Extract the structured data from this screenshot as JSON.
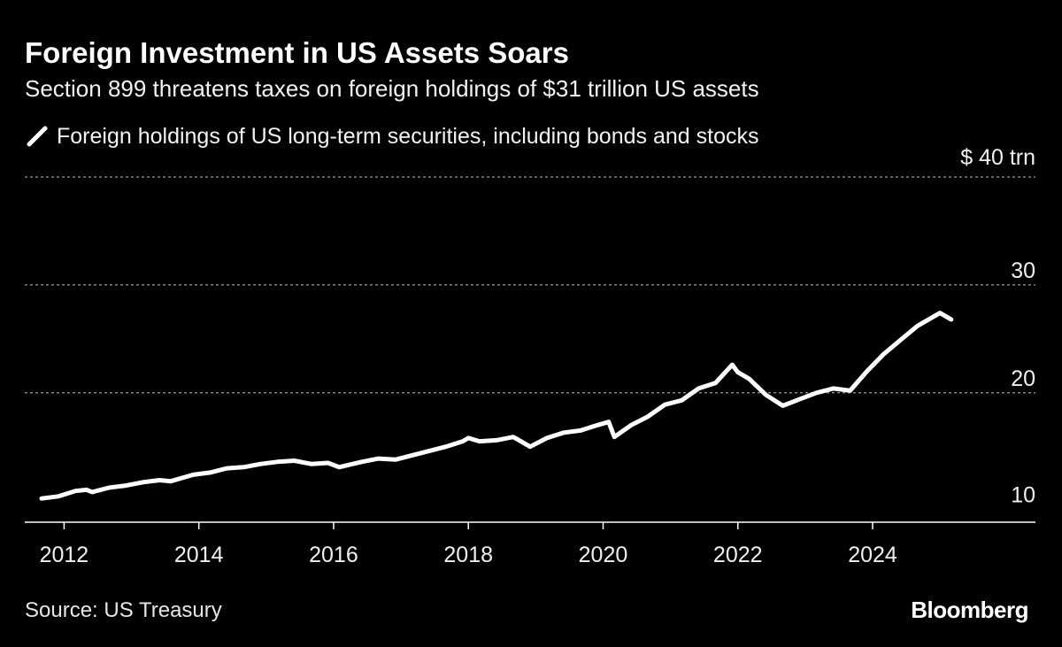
{
  "chart_data": {
    "type": "line",
    "title": "Foreign Investment in US Assets Soars",
    "subtitle": "Section 899 threatens taxes on foreign holdings of $31 trillion US assets",
    "y_unit_label": "$ 40 trn",
    "series": [
      {
        "name": "Foreign holdings of US long-term securities, including bonds and stocks",
        "color": "#ffffff",
        "points": [
          [
            "2011-09",
            10.2
          ],
          [
            "2011-12",
            10.4
          ],
          [
            "2012-03",
            10.9
          ],
          [
            "2012-05",
            11.0
          ],
          [
            "2012-06",
            10.8
          ],
          [
            "2012-09",
            11.2
          ],
          [
            "2012-12",
            11.4
          ],
          [
            "2013-03",
            11.7
          ],
          [
            "2013-06",
            11.9
          ],
          [
            "2013-08",
            11.8
          ],
          [
            "2013-12",
            12.4
          ],
          [
            "2014-03",
            12.6
          ],
          [
            "2014-06",
            13.0
          ],
          [
            "2014-09",
            13.1
          ],
          [
            "2014-12",
            13.4
          ],
          [
            "2015-03",
            13.6
          ],
          [
            "2015-06",
            13.7
          ],
          [
            "2015-09",
            13.4
          ],
          [
            "2015-12",
            13.5
          ],
          [
            "2016-02",
            13.1
          ],
          [
            "2016-06",
            13.6
          ],
          [
            "2016-09",
            13.9
          ],
          [
            "2016-12",
            13.8
          ],
          [
            "2017-03",
            14.2
          ],
          [
            "2017-06",
            14.6
          ],
          [
            "2017-09",
            15.0
          ],
          [
            "2017-12",
            15.5
          ],
          [
            "2018-01",
            15.8
          ],
          [
            "2018-03",
            15.5
          ],
          [
            "2018-06",
            15.6
          ],
          [
            "2018-09",
            15.9
          ],
          [
            "2018-12",
            15.0
          ],
          [
            "2019-03",
            15.8
          ],
          [
            "2019-06",
            16.3
          ],
          [
            "2019-09",
            16.5
          ],
          [
            "2019-12",
            17.0
          ],
          [
            "2020-02",
            17.3
          ],
          [
            "2020-03",
            15.9
          ],
          [
            "2020-06",
            17.0
          ],
          [
            "2020-09",
            17.8
          ],
          [
            "2020-12",
            18.9
          ],
          [
            "2021-03",
            19.3
          ],
          [
            "2021-06",
            20.4
          ],
          [
            "2021-09",
            20.9
          ],
          [
            "2021-12",
            22.6
          ],
          [
            "2022-01",
            21.9
          ],
          [
            "2022-03",
            21.3
          ],
          [
            "2022-06",
            19.8
          ],
          [
            "2022-09",
            18.8
          ],
          [
            "2022-12",
            19.4
          ],
          [
            "2023-03",
            20.0
          ],
          [
            "2023-06",
            20.4
          ],
          [
            "2023-09",
            20.2
          ],
          [
            "2023-12",
            22.0
          ],
          [
            "2024-03",
            23.6
          ],
          [
            "2024-06",
            24.9
          ],
          [
            "2024-09",
            26.2
          ],
          [
            "2024-12",
            27.1
          ],
          [
            "2025-01",
            27.4
          ],
          [
            "2025-03",
            26.8
          ]
        ]
      }
    ],
    "x_ticks": [
      "2012",
      "2014",
      "2016",
      "2018",
      "2020",
      "2022",
      "2024"
    ],
    "y_ticks": [
      "10",
      "20",
      "30"
    ],
    "ylim": [
      8,
      40
    ],
    "xlim": [
      "2011-06",
      "2026-06"
    ],
    "grid": "dotted horizontal",
    "legend_position": "top-left",
    "source": "Source: US Treasury",
    "brand": "Bloomberg"
  }
}
